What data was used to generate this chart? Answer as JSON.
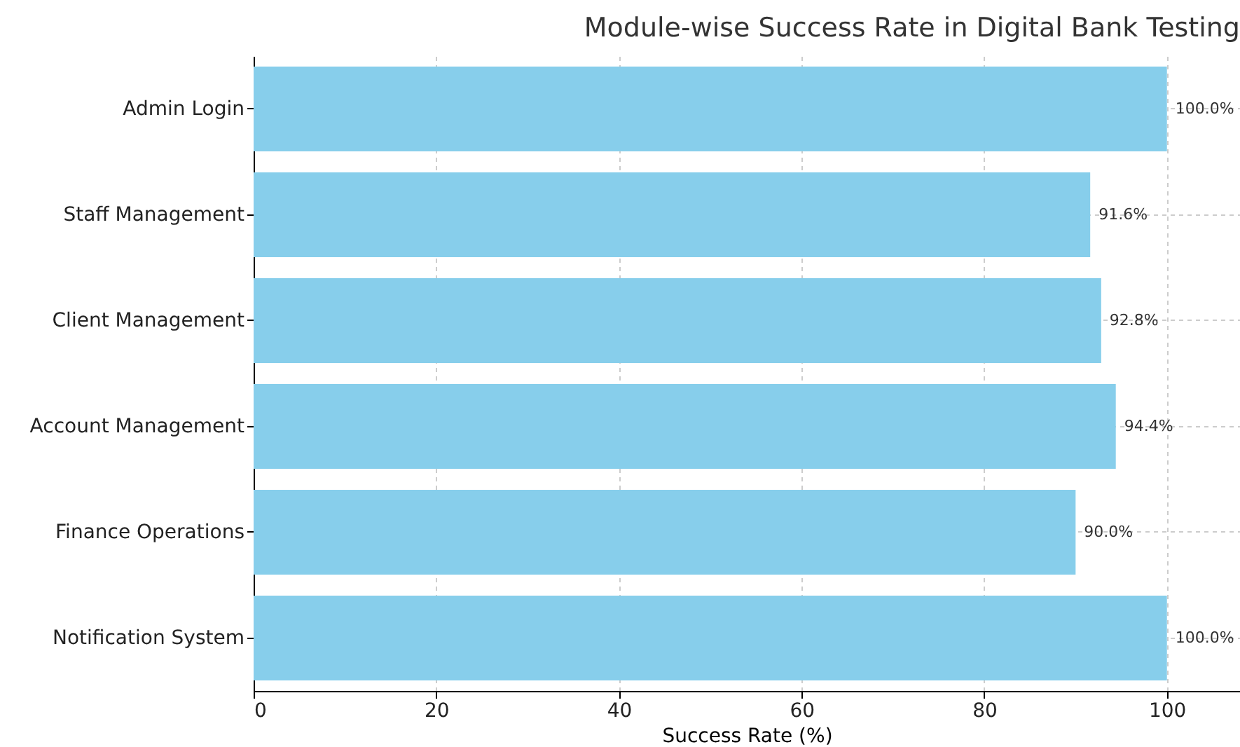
{
  "chart_data": {
    "type": "bar",
    "orientation": "horizontal",
    "title": "Module-wise Success Rate in Digital Bank Testing",
    "xlabel": "Success Rate (%)",
    "categories": [
      "Admin Login",
      "Staff Management",
      "Client Management",
      "Account Management",
      "Finance Operations",
      "Notification System"
    ],
    "values": [
      100.0,
      91.6,
      92.8,
      94.4,
      90.0,
      100.0
    ],
    "value_labels": [
      "100.0%",
      "91.6%",
      "92.8%",
      "94.4%",
      "90.0%",
      "100.0%"
    ],
    "color": "#87ceeb",
    "xlim": [
      0,
      108
    ],
    "xticks": [
      0,
      20,
      40,
      60,
      80,
      100
    ],
    "grid": true
  }
}
